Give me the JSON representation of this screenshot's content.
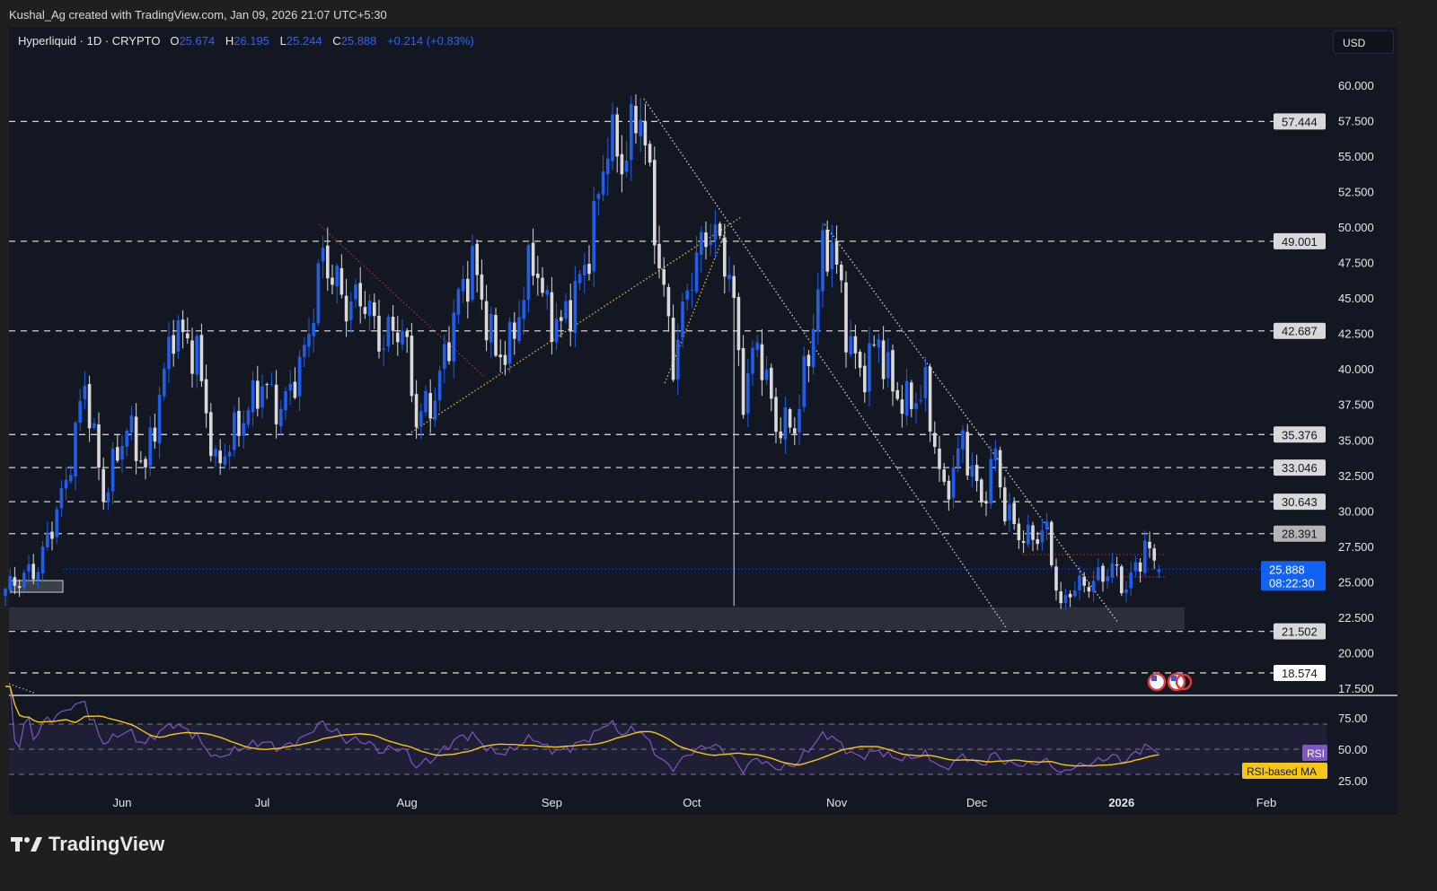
{
  "credit": "Kushal_Ag created with TradingView.com, Jan 09, 2026 21:07 UTC+5:30",
  "legend": {
    "symbol": "Hyperliquid · 1D · CRYPTO",
    "o_label": "O",
    "o": "25.674",
    "h_label": "H",
    "h": "26.195",
    "l_label": "L",
    "l": "25.244",
    "c_label": "C",
    "c": "25.888",
    "change": "+0.214 (+0.83%)"
  },
  "currency_button": "USD",
  "footer_logo": "TradingView",
  "colors": {
    "up": "#1e5eea",
    "down": "#d9d9d9",
    "background": "#121722",
    "accent": "#2962ff",
    "rsi": "#7e57c2",
    "rsi_ma": "#f5c518"
  },
  "chart_data": {
    "type": "candlestick",
    "title": "Hyperliquid · 1D · CRYPTO",
    "start_date": "2025-05-07",
    "close_waypoints_by_day": [
      [
        0,
        24.5
      ],
      [
        7,
        26
      ],
      [
        13,
        32
      ],
      [
        17,
        39
      ],
      [
        21,
        31
      ],
      [
        26,
        36
      ],
      [
        30,
        33
      ],
      [
        36,
        43
      ],
      [
        41,
        41
      ],
      [
        45,
        33
      ],
      [
        50,
        36
      ],
      [
        55,
        39
      ],
      [
        59,
        37
      ],
      [
        64,
        41
      ],
      [
        68,
        48
      ],
      [
        73,
        44.5
      ],
      [
        77,
        45
      ],
      [
        80,
        42
      ],
      [
        85,
        43
      ],
      [
        88,
        36.5
      ],
      [
        92,
        38
      ],
      [
        97,
        45
      ],
      [
        100,
        47.5
      ],
      [
        105,
        41
      ],
      [
        108,
        41.5
      ],
      [
        113,
        48
      ],
      [
        116,
        44
      ],
      [
        119,
        43
      ],
      [
        124,
        47
      ],
      [
        127,
        52
      ],
      [
        129,
        56.5
      ],
      [
        132,
        54.5
      ],
      [
        136,
        58.5
      ],
      [
        139,
        50
      ],
      [
        143,
        40.5
      ],
      [
        147,
        47
      ],
      [
        151,
        50
      ],
      [
        155,
        47
      ],
      [
        158,
        38
      ],
      [
        161,
        42
      ],
      [
        165,
        36
      ],
      [
        169,
        36
      ],
      [
        172,
        41
      ],
      [
        175,
        48
      ],
      [
        177,
        49
      ],
      [
        180,
        43
      ],
      [
        183,
        39.5
      ],
      [
        187,
        42
      ],
      [
        190,
        38.5
      ],
      [
        193,
        37.5
      ],
      [
        197,
        38.5
      ],
      [
        201,
        31
      ],
      [
        205,
        35
      ],
      [
        209,
        30.5
      ],
      [
        212,
        34
      ],
      [
        214,
        30
      ],
      [
        218,
        28
      ],
      [
        223,
        28.5
      ],
      [
        226,
        23
      ],
      [
        228,
        24.5
      ],
      [
        233,
        25
      ],
      [
        237,
        26
      ],
      [
        240,
        24.5
      ],
      [
        244,
        27.5
      ],
      [
        247,
        25.888
      ]
    ],
    "flash_crash": {
      "day": 156,
      "low": 23.3
    },
    "last_candle": {
      "open": 25.674,
      "high": 26.195,
      "low": 25.244,
      "close": 25.888
    },
    "y_axis": {
      "ylim": [
        17.5,
        60
      ],
      "ticks": [
        "60.000",
        "57.500",
        "55.000",
        "52.500",
        "50.000",
        "47.500",
        "45.000",
        "42.500",
        "40.000",
        "37.500",
        "35.000",
        "32.500",
        "30.000",
        "27.500",
        "25.000",
        "22.500",
        "20.000",
        "17.500"
      ]
    },
    "x_axis": {
      "ticks": [
        {
          "label": "Jun",
          "day": 25
        },
        {
          "label": "Jul",
          "day": 55
        },
        {
          "label": "Aug",
          "day": 86
        },
        {
          "label": "Sep",
          "day": 117
        },
        {
          "label": "Oct",
          "day": 147
        },
        {
          "label": "Nov",
          "day": 178
        },
        {
          "label": "Dec",
          "day": 208
        },
        {
          "label": "2026",
          "day": 239
        },
        {
          "label": "Feb",
          "day": 270
        }
      ]
    },
    "levels": [
      {
        "value": 57.444,
        "label": "57.444",
        "style": "light"
      },
      {
        "value": 49.001,
        "label": "49.001",
        "style": "light"
      },
      {
        "value": 42.687,
        "label": "42.687",
        "style": "light"
      },
      {
        "value": 35.376,
        "label": "35.376",
        "style": "light"
      },
      {
        "value": 33.046,
        "label": "33.046",
        "style": "light"
      },
      {
        "value": 30.643,
        "label": "30.643",
        "style": "light"
      },
      {
        "value": 28.391,
        "label": "28.391",
        "style": "gray"
      },
      {
        "value": 21.502,
        "label": "21.502",
        "style": "light"
      },
      {
        "value": 18.574,
        "label": "18.574",
        "style": "white"
      }
    ],
    "current_price": {
      "label": "25.888",
      "countdown": "08:22:30",
      "value": 25.888
    },
    "support_zone": {
      "from_day": 0,
      "to_day": 252.5,
      "low": 21.6,
      "high": 23.2
    },
    "trendlines": [
      {
        "color": "#c8c8c8",
        "points": [
          [
            136.7,
            59.05
          ],
          [
            214.2,
            21.8
          ]
        ]
      },
      {
        "color": "#c8c8c8",
        "points": [
          [
            175.4,
            50.2
          ],
          [
            238.3,
            22.1
          ]
        ]
      },
      {
        "color": "#d4b83a",
        "points": [
          [
            86.3,
            35.4
          ],
          [
            157.5,
            50.7
          ]
        ]
      },
      {
        "color": "#d4b83a",
        "points": [
          [
            141.2,
            39.0
          ],
          [
            154.2,
            49.7
          ]
        ]
      },
      {
        "color": "#b0283e",
        "points": [
          [
            67.1,
            50.2
          ],
          [
            102.7,
            39.4
          ]
        ]
      }
    ],
    "range_box": {
      "high": 26.92,
      "low": 25.34,
      "from_day": 217.7,
      "to_day": 248.3
    },
    "rsi_pane": {
      "ticks": [
        "75.00",
        "50.00",
        "25.00"
      ],
      "band": [
        30,
        70
      ],
      "rsi_label": "RSI",
      "ma_label": "RSI-based MA",
      "period": 14
    }
  }
}
